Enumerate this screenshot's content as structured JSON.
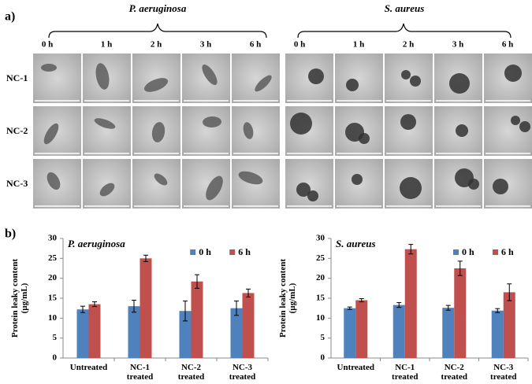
{
  "panel_a": {
    "label": "a)",
    "groups": [
      {
        "name": "P. aeruginosa",
        "times": [
          "0 h",
          "1 h",
          "2 h",
          "3 h",
          "6 h"
        ]
      },
      {
        "name": "S. aureus",
        "times": [
          "0 h",
          "1 h",
          "2 h",
          "3 h",
          "6 h"
        ]
      }
    ],
    "rows": [
      "NC-1",
      "NC-2",
      "NC-3"
    ]
  },
  "panel_b": {
    "label": "b)"
  },
  "chart_data": [
    {
      "type": "bar",
      "title": "P. aeruginosa",
      "y_label": "Protein leaky content (µg/mL)",
      "categories": [
        "Untreated",
        "NC-1 treated",
        "NC-2 treated",
        "NC-3 treated"
      ],
      "series": [
        {
          "name": "0 h",
          "color": "#4f81bd",
          "values": [
            12.2,
            13,
            11.8,
            12.5
          ],
          "errors": [
            0.8,
            1.5,
            2.5,
            1.8
          ]
        },
        {
          "name": "6 h",
          "color": "#c0504d",
          "values": [
            13.5,
            25,
            19.2,
            16.3
          ],
          "errors": [
            0.6,
            0.8,
            1.7,
            1
          ]
        }
      ],
      "ylim": [
        0,
        30
      ],
      "yticks": [
        0,
        5,
        10,
        15,
        20,
        25,
        30
      ],
      "legend": "top-right"
    },
    {
      "type": "bar",
      "title": "S. aureus",
      "y_label": "Protein leaky content (µg/mL)",
      "categories": [
        "Untreated",
        "NC-1 treated",
        "NC-2 treated",
        "NC-3 treated"
      ],
      "series": [
        {
          "name": "0 h",
          "color": "#4f81bd",
          "values": [
            12.5,
            13.3,
            12.6,
            11.9
          ],
          "errors": [
            0.3,
            0.6,
            0.6,
            0.5
          ]
        },
        {
          "name": "6 h",
          "color": "#c0504d",
          "values": [
            14.5,
            27.3,
            22.5,
            16.5
          ],
          "errors": [
            0.4,
            1.2,
            1.8,
            2.1
          ]
        }
      ],
      "ylim": [
        0,
        30
      ],
      "yticks": [
        0,
        5,
        10,
        15,
        20,
        25,
        30
      ],
      "legend": "top-right"
    }
  ]
}
